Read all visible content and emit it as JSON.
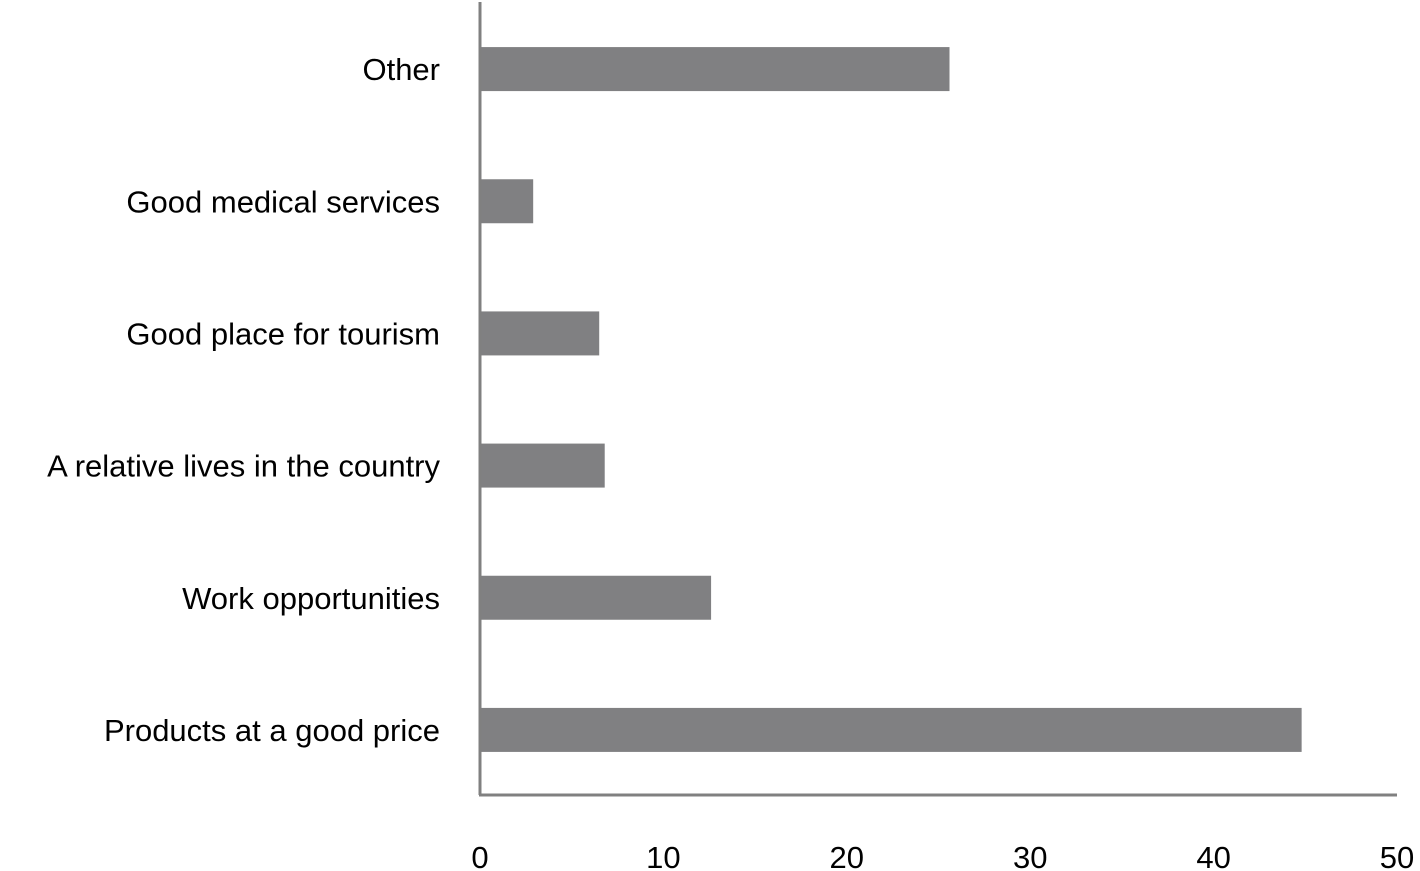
{
  "chart_data": {
    "type": "bar",
    "orientation": "horizontal",
    "title": "",
    "xlabel": "",
    "ylabel": "",
    "categories": [
      "Products at a good price",
      "Work opportunities",
      "A relative lives in the country",
      "Good place for tourism",
      "Good medical services",
      "Other"
    ],
    "values": [
      44.8,
      12.6,
      6.8,
      6.5,
      2.9,
      25.6
    ],
    "xlim": [
      0,
      50
    ],
    "xticks": [
      "0",
      "10",
      "20",
      "30",
      "40",
      "50"
    ],
    "grid": false,
    "legend": "none",
    "bar_color": "#808082",
    "axis_color": "#808080"
  }
}
